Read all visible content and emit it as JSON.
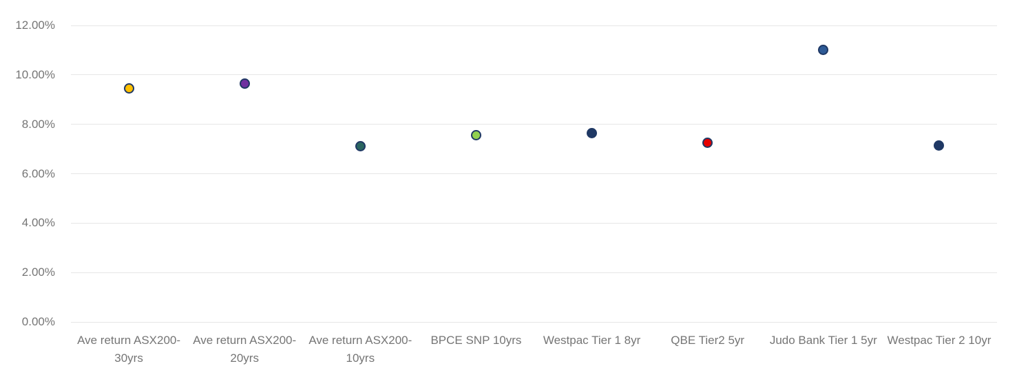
{
  "chart_data": {
    "type": "scatter",
    "title": "",
    "xlabel": "",
    "ylabel": "",
    "categories": [
      "Ave return ASX200-30yrs",
      "Ave return ASX200-20yrs",
      "Ave return ASX200-10yrs",
      "BPCE SNP 10yrs",
      "Westpac Tier 1 8yr",
      "QBE Tier2 5yr",
      "Judo Bank Tier 1 5yr",
      "Westpac Tier 2 10yr"
    ],
    "values": [
      9.45,
      9.65,
      7.1,
      7.55,
      7.65,
      7.25,
      11.0,
      7.15
    ],
    "point_colors": [
      "#ffc000",
      "#7030a0",
      "#2a6560",
      "#92d050",
      "#1f3864",
      "#e60000",
      "#2e5b96",
      "#1f3864"
    ],
    "point_border_color": "#1f3864",
    "ylim": [
      0,
      12
    ],
    "y_ticks": [
      {
        "value": 0,
        "label": "0.00%"
      },
      {
        "value": 2,
        "label": "2.00%"
      },
      {
        "value": 4,
        "label": "4.00%"
      },
      {
        "value": 6,
        "label": "6.00%"
      },
      {
        "value": 8,
        "label": "8.00%"
      },
      {
        "value": 10,
        "label": "10.00%"
      },
      {
        "value": 12,
        "label": "12.00%"
      }
    ],
    "grid": true,
    "legend_position": "none",
    "colors": {
      "axis_text": "#757575",
      "gridline": "#e6e6e6",
      "background": "#ffffff"
    }
  }
}
